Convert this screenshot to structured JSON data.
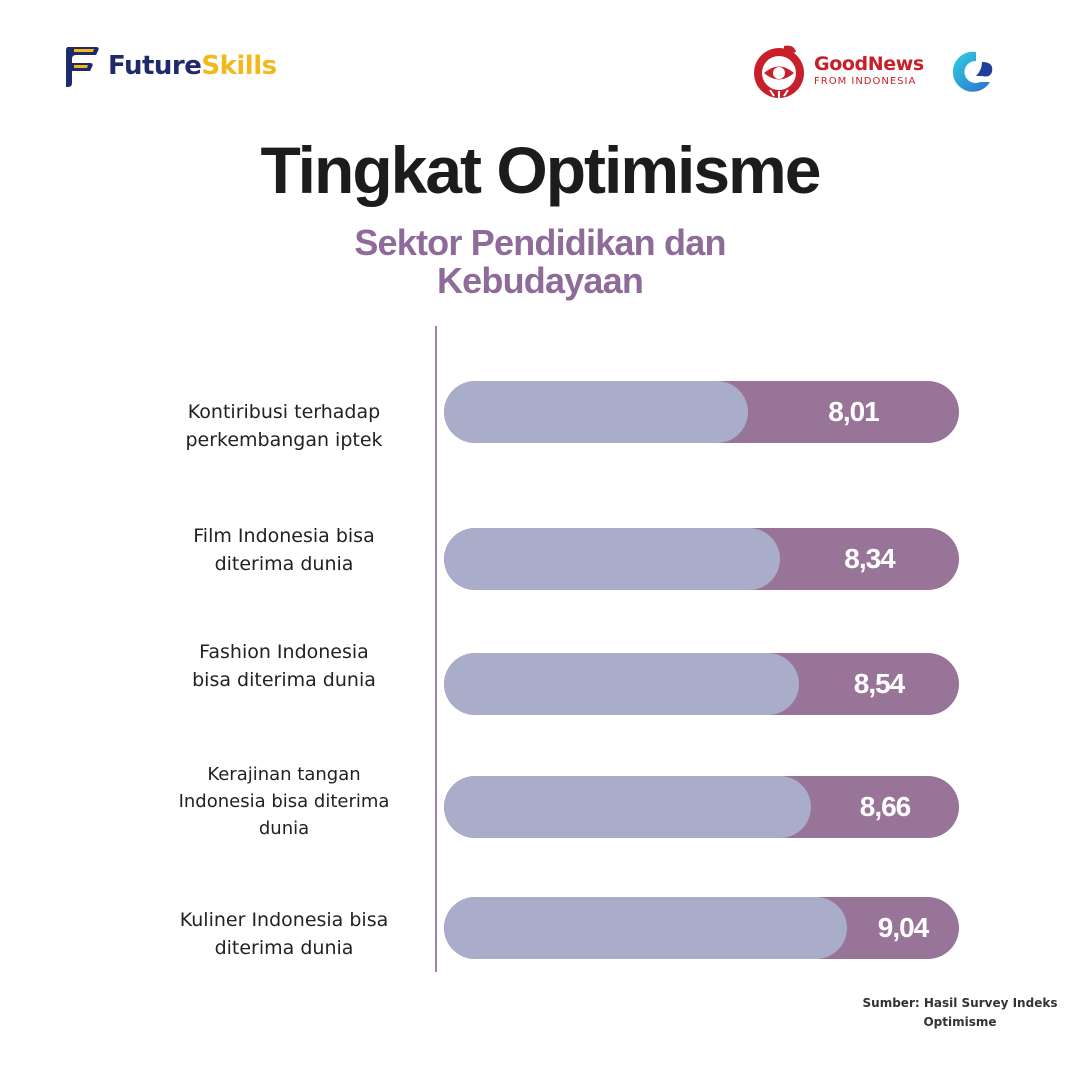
{
  "logos": {
    "futureskills": {
      "word1": "Future",
      "word2": "Skills",
      "icon": "futureskills-logo-icon"
    },
    "goodnews": {
      "line1": "GoodNews",
      "line2": "FROM INDONESIA",
      "icon": "garuda-emblem-icon"
    },
    "partner": {
      "icon": "gs-logo-icon"
    }
  },
  "title": "Tingkat Optimisme",
  "subtitle_lines": [
    "Sektor Pendidikan dan",
    "Kebudayaan"
  ],
  "source_lines": [
    "Sumber: Hasil Survey Indeks",
    "Optimisme"
  ],
  "colors": {
    "bar_fill": "#aaadca",
    "bar_track": "#987499",
    "accent": "#8e6b99"
  },
  "chart_data": {
    "type": "bar",
    "orientation": "horizontal",
    "categories": [
      [
        "Kontiribusi terhadap",
        "perkembangan iptek"
      ],
      [
        "Film Indonesia bisa",
        "diterima dunia"
      ],
      [
        "Fashion Indonesia",
        "bisa diterima dunia"
      ],
      [
        "Kerajinan tangan",
        "Indonesia bisa diterima",
        "dunia"
      ],
      [
        "Kuliner Indonesia bisa",
        "diterima dunia"
      ]
    ],
    "values": [
      8.01,
      8.34,
      8.54,
      8.66,
      9.04
    ],
    "value_labels": [
      "8,01",
      "8,34",
      "8,54",
      "8,66",
      "9,04"
    ],
    "xlim": [
      0,
      10
    ],
    "grid": false,
    "legend": "none"
  }
}
